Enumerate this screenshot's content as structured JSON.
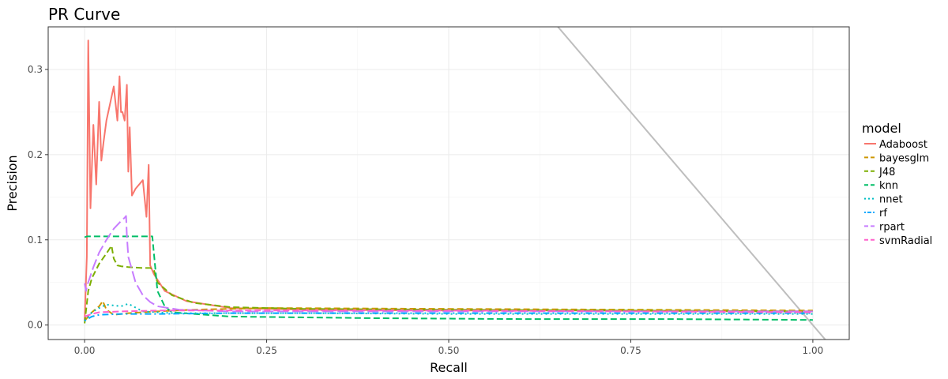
{
  "chart_data": {
    "type": "line",
    "title": "PR Curve",
    "xlabel": "Recall",
    "ylabel": "Precision",
    "xlim": [
      -0.05,
      1.05
    ],
    "ylim": [
      -0.017,
      0.35
    ],
    "xticks": [
      0.0,
      0.25,
      0.5,
      0.75,
      1.0
    ],
    "xtick_labels": [
      "0.00",
      "0.25",
      "0.50",
      "0.75",
      "1.00"
    ],
    "yticks": [
      0.0,
      0.1,
      0.2,
      0.3
    ],
    "ytick_labels": [
      "0.0",
      "0.1",
      "0.2",
      "0.3"
    ],
    "grid": true,
    "legend": {
      "title": "model",
      "position": "right"
    },
    "reference_line": {
      "slope": -1,
      "intercept": 1,
      "color": "#bebebe"
    },
    "series": [
      {
        "name": "Adaboost",
        "color": "#F8766D",
        "dash": "solid",
        "x": [
          0.0,
          0.003,
          0.005,
          0.008,
          0.012,
          0.016,
          0.02,
          0.023,
          0.026,
          0.03,
          0.035,
          0.04,
          0.045,
          0.048,
          0.05,
          0.052,
          0.055,
          0.058,
          0.06,
          0.062,
          0.065,
          0.07,
          0.08,
          0.085,
          0.088,
          0.09,
          0.095,
          0.11,
          0.14,
          0.2,
          0.3,
          0.5,
          0.7,
          0.9,
          1.0
        ],
        "y": [
          0.005,
          0.08,
          0.334,
          0.137,
          0.235,
          0.165,
          0.262,
          0.193,
          0.215,
          0.24,
          0.26,
          0.28,
          0.24,
          0.292,
          0.25,
          0.25,
          0.24,
          0.282,
          0.18,
          0.232,
          0.152,
          0.16,
          0.17,
          0.127,
          0.188,
          0.07,
          0.06,
          0.04,
          0.028,
          0.02,
          0.018,
          0.017,
          0.017,
          0.016,
          0.016
        ]
      },
      {
        "name": "bayesglm",
        "color": "#CD9600",
        "dash": "dashed",
        "x": [
          0.0,
          0.01,
          0.02,
          0.025,
          0.03,
          0.04,
          0.06,
          0.1,
          0.15,
          0.25,
          0.5,
          0.75,
          1.0
        ],
        "y": [
          0.005,
          0.015,
          0.022,
          0.028,
          0.018,
          0.012,
          0.014,
          0.016,
          0.018,
          0.02,
          0.019,
          0.018,
          0.017
        ]
      },
      {
        "name": "J48",
        "color": "#7CAE00",
        "dash": "dashed",
        "x": [
          0.0,
          0.005,
          0.01,
          0.02,
          0.03,
          0.037,
          0.04,
          0.045,
          0.05,
          0.06,
          0.08,
          0.09,
          0.095,
          0.1,
          0.12,
          0.15,
          0.2,
          0.25,
          0.3,
          0.5,
          0.75,
          1.0
        ],
        "y": [
          0.002,
          0.04,
          0.055,
          0.072,
          0.084,
          0.093,
          0.078,
          0.07,
          0.069,
          0.068,
          0.067,
          0.067,
          0.065,
          0.05,
          0.035,
          0.026,
          0.021,
          0.02,
          0.019,
          0.018,
          0.017,
          0.016
        ]
      },
      {
        "name": "knn",
        "color": "#00BE67",
        "dash": "dashed",
        "x": [
          0.0,
          0.003,
          0.093,
          0.1,
          0.11,
          0.12,
          0.2,
          0.4,
          0.6,
          0.8,
          1.0
        ],
        "y": [
          0.103,
          0.104,
          0.104,
          0.04,
          0.022,
          0.015,
          0.01,
          0.008,
          0.007,
          0.007,
          0.006
        ]
      },
      {
        "name": "nnet",
        "color": "#00BFC4",
        "dash": "dotted",
        "x": [
          0.0,
          0.01,
          0.02,
          0.03,
          0.05,
          0.06,
          0.08,
          0.12,
          0.3,
          0.5,
          0.75,
          1.0
        ],
        "y": [
          0.005,
          0.015,
          0.02,
          0.024,
          0.022,
          0.025,
          0.016,
          0.014,
          0.014,
          0.013,
          0.013,
          0.013
        ]
      },
      {
        "name": "rf",
        "color": "#00A9FF",
        "dash": "dotdash",
        "x": [
          0.0,
          0.01,
          0.02,
          0.05,
          0.1,
          0.2,
          0.5,
          0.75,
          1.0
        ],
        "y": [
          0.005,
          0.01,
          0.012,
          0.013,
          0.013,
          0.014,
          0.014,
          0.014,
          0.014
        ]
      },
      {
        "name": "rpart",
        "color": "#C77CFF",
        "dash": "longdash",
        "x": [
          0.0,
          0.002,
          0.004,
          0.007,
          0.012,
          0.02,
          0.03,
          0.04,
          0.05,
          0.055,
          0.057,
          0.058,
          0.06,
          0.07,
          0.08,
          0.09,
          0.1,
          0.13,
          0.2,
          0.3,
          0.5,
          0.7,
          0.9,
          1.0
        ],
        "y": [
          0.049,
          0.04,
          0.048,
          0.055,
          0.068,
          0.085,
          0.1,
          0.113,
          0.122,
          0.126,
          0.128,
          0.105,
          0.08,
          0.05,
          0.035,
          0.027,
          0.022,
          0.018,
          0.016,
          0.016,
          0.016,
          0.016,
          0.016,
          0.016
        ]
      },
      {
        "name": "svmRadial",
        "color": "#FF61CC",
        "dash": "dashed",
        "x": [
          0.0,
          0.01,
          0.02,
          0.05,
          0.1,
          0.2,
          0.3,
          0.5,
          0.75,
          1.0
        ],
        "y": [
          0.01,
          0.013,
          0.015,
          0.016,
          0.017,
          0.017,
          0.017,
          0.017,
          0.016,
          0.015
        ]
      }
    ]
  }
}
